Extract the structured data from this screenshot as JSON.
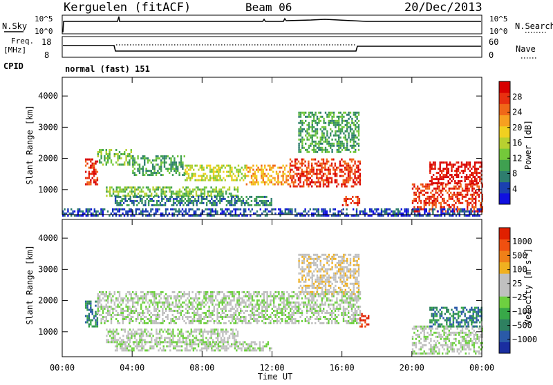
{
  "header": {
    "station": "Kerguelen (fitACF)",
    "beam": "Beam 06",
    "date": "20/Dec/2013"
  },
  "nsky_panel": {
    "left_label": "N.Sky",
    "right_label": "N.Search",
    "ticks": [
      "10^5",
      "10^0"
    ]
  },
  "freq_panel": {
    "label_top": "Freq.",
    "label_unit": "[MHz]",
    "left_ticks": [
      "18",
      "8"
    ],
    "right_ticks": [
      "60",
      "0"
    ],
    "right_label": "Nave"
  },
  "cpid": {
    "label": "CPID",
    "text": "normal (fast) 151"
  },
  "chart_data": [
    {
      "type": "heatmap",
      "name": "power",
      "ylabel": "Slant Range [km]",
      "yticks": [
        1000,
        2000,
        3000,
        4000
      ],
      "ylim": [
        200,
        4600
      ],
      "xlim": [
        0,
        24
      ],
      "colorbar": {
        "label": "Power [dB]",
        "ticks": [
          "4",
          "8",
          "12",
          "16",
          "20",
          "24",
          "28"
        ],
        "colors": [
          "#1010e0",
          "#1a40b0",
          "#2e7d6e",
          "#3fa050",
          "#74c83a",
          "#b8d030",
          "#f0d020",
          "#f7a020",
          "#f06818",
          "#e83010",
          "#d80000"
        ]
      },
      "echo_regions": [
        {
          "t0": 1.3,
          "t1": 2.0,
          "r0": 1200,
          "r1": 2000,
          "level": 9
        },
        {
          "t0": 2.0,
          "t1": 4.0,
          "r0": 1800,
          "r1": 2300,
          "level": 4
        },
        {
          "t0": 4.0,
          "t1": 7.0,
          "r0": 1500,
          "r1": 2100,
          "level": 3
        },
        {
          "t0": 7.0,
          "t1": 10.5,
          "r0": 1300,
          "r1": 1800,
          "level": 5
        },
        {
          "t0": 10.5,
          "t1": 13.0,
          "r0": 1200,
          "r1": 1800,
          "level": 7
        },
        {
          "t0": 13.0,
          "t1": 17.0,
          "r0": 1100,
          "r1": 2000,
          "level": 9
        },
        {
          "t0": 2.5,
          "t1": 10.0,
          "r0": 800,
          "r1": 1100,
          "level": 4
        },
        {
          "t0": 3.0,
          "t1": 12.0,
          "r0": 500,
          "r1": 800,
          "level": 2
        },
        {
          "t0": 13.5,
          "t1": 17.0,
          "r0": 2200,
          "r1": 3500,
          "level": 3
        },
        {
          "t0": 16.0,
          "t1": 17.0,
          "r0": 500,
          "r1": 800,
          "level": 9
        },
        {
          "t0": 20.0,
          "t1": 24.0,
          "r0": 300,
          "r1": 1200,
          "level": 9
        },
        {
          "t0": 21.0,
          "t1": 24.0,
          "r0": 1200,
          "r1": 1900,
          "level": 10
        },
        {
          "t0": 0.0,
          "t1": 24.0,
          "r0": 200,
          "r1": 400,
          "level": 1
        }
      ]
    },
    {
      "type": "heatmap",
      "name": "velocity",
      "ylabel": "Slant Range [km]",
      "xlabel": "Time UT",
      "xticks": [
        "00:00",
        "04:00",
        "08:00",
        "12:00",
        "16:00",
        "20:00",
        "00:00"
      ],
      "yticks": [
        1000,
        2000,
        3000,
        4000
      ],
      "ylim": [
        200,
        4600
      ],
      "xlim": [
        0,
        24
      ],
      "colorbar": {
        "label": "Velocity [m s",
        "label_sup": "-1",
        "label_end": "]",
        "ticks": [
          "1000",
          "500",
          "100",
          "25",
          "−25",
          "−100",
          "−500",
          "−1000"
        ],
        "colors": [
          "#1a2ea0",
          "#2a5aa8",
          "#2e8060",
          "#38a848",
          "#6ed040",
          "#c0c0c0",
          "#c0c0c0",
          "#f0b020",
          "#f08018",
          "#f05010",
          "#e02000"
        ]
      },
      "echo_regions": [
        {
          "t0": 1.3,
          "t1": 2.0,
          "r0": 1200,
          "r1": 2000,
          "level": 2
        },
        {
          "t0": 2.0,
          "t1": 17.0,
          "r0": 1300,
          "r1": 2300,
          "level": 5
        },
        {
          "t0": 2.5,
          "t1": 10.0,
          "r0": 700,
          "r1": 1100,
          "level": 5
        },
        {
          "t0": 3.0,
          "t1": 12.0,
          "r0": 400,
          "r1": 700,
          "level": 5
        },
        {
          "t0": 13.5,
          "t1": 17.0,
          "r0": 2200,
          "r1": 3500,
          "level": 6
        },
        {
          "t0": 17.0,
          "t1": 17.5,
          "r0": 1200,
          "r1": 1600,
          "level": 10
        },
        {
          "t0": 20.0,
          "t1": 24.0,
          "r0": 300,
          "r1": 1200,
          "level": 5
        },
        {
          "t0": 21.0,
          "t1": 24.0,
          "r0": 1200,
          "r1": 1800,
          "level": 2
        }
      ]
    }
  ]
}
